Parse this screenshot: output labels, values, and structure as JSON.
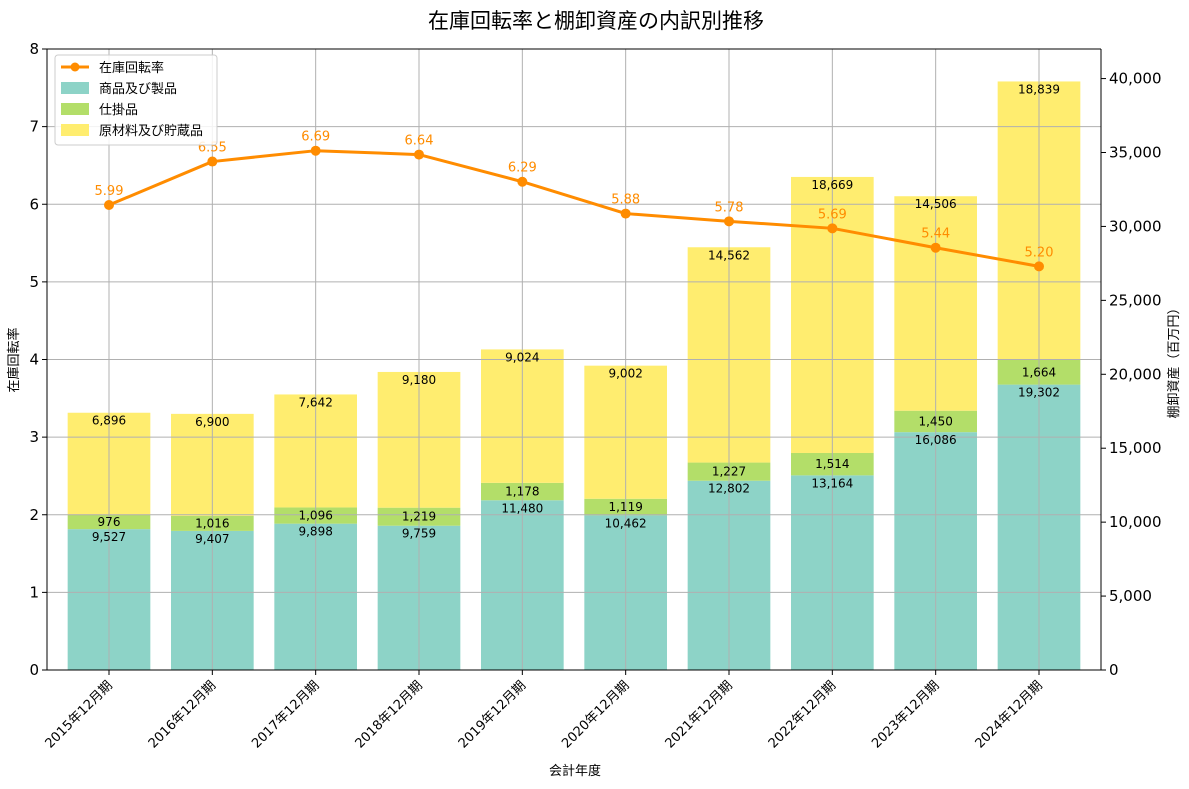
{
  "chart_data": {
    "type": "bar",
    "stacked": true,
    "dual_axis": true,
    "title": "在庫回転率と棚卸資産の内訳別推移",
    "xlabel": "会計年度",
    "ylabel_left": "在庫回転率",
    "ylabel_right": "棚卸資産（百万円）",
    "categories": [
      "2015年12月期",
      "2016年12月期",
      "2017年12月期",
      "2018年12月期",
      "2019年12月期",
      "2020年12月期",
      "2021年12月期",
      "2022年12月期",
      "2023年12月期",
      "2024年12月期"
    ],
    "bar_series": [
      {
        "name": "商品及び製品",
        "color": "#8dd3c7",
        "values": [
          9527,
          9407,
          9898,
          9759,
          11480,
          10462,
          12802,
          13164,
          16086,
          19302
        ],
        "labels": [
          "9,527",
          "9,407",
          "9,898",
          "9,759",
          "11,480",
          "10,462",
          "12,802",
          "13,164",
          "16,086",
          "19,302"
        ]
      },
      {
        "name": "仕掛品",
        "color": "#b3de69",
        "values": [
          976,
          1016,
          1096,
          1219,
          1178,
          1119,
          1227,
          1514,
          1450,
          1664
        ],
        "labels": [
          "976",
          "1,016",
          "1,096",
          "1,219",
          "1,178",
          "1,119",
          "1,227",
          "1,514",
          "1,450",
          "1,664"
        ]
      },
      {
        "name": "原材料及び貯蔵品",
        "color": "#ffed6f",
        "values": [
          6896,
          6900,
          7642,
          9180,
          9024,
          9002,
          14562,
          18669,
          14506,
          18839
        ],
        "labels": [
          "6,896",
          "6,900",
          "7,642",
          "9,180",
          "9,024",
          "9,002",
          "14,562",
          "18,669",
          "14,506",
          "18,839"
        ]
      }
    ],
    "line_series": {
      "name": "在庫回転率",
      "color": "#ff8c00",
      "values": [
        5.99,
        6.55,
        6.69,
        6.64,
        6.29,
        5.88,
        5.78,
        5.69,
        5.44,
        5.2
      ],
      "labels": [
        "5.99",
        "6.55",
        "6.69",
        "6.64",
        "6.29",
        "5.88",
        "5.78",
        "5.69",
        "5.44",
        "5.20"
      ]
    },
    "ylim_left": [
      0,
      8
    ],
    "yticks_left": [
      "0",
      "1",
      "2",
      "3",
      "4",
      "5",
      "6",
      "7",
      "8"
    ],
    "ylim_right": [
      0,
      42000
    ],
    "yticks_right_values": [
      0,
      5000,
      10000,
      15000,
      20000,
      25000,
      30000,
      35000,
      40000
    ],
    "yticks_right": [
      "0",
      "5,000",
      "10,000",
      "15,000",
      "20,000",
      "25,000",
      "30,000",
      "35,000",
      "40,000"
    ],
    "grid": true,
    "legend_position": "top-left"
  }
}
